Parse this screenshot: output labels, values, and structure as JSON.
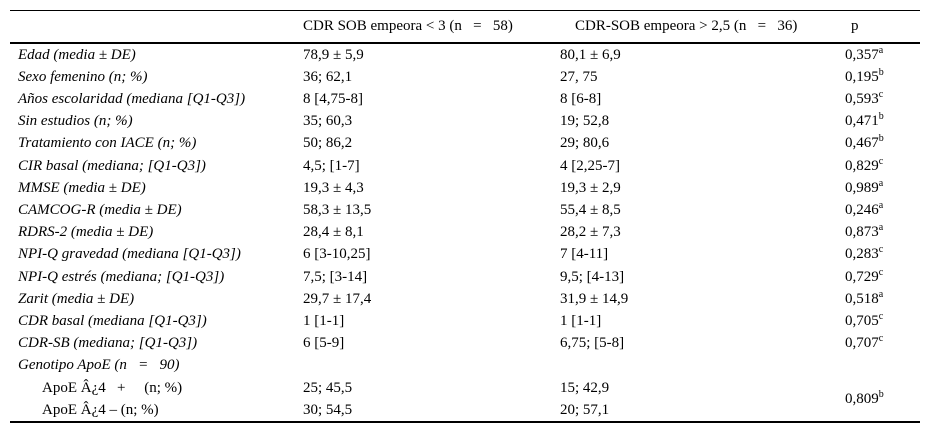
{
  "page": {
    "background": "#ffffff",
    "text_color": "#000000",
    "border_color": "#000000"
  },
  "table": {
    "header": {
      "variable": "",
      "group1": "CDR SOB empeora < 3 (n   =   58)",
      "group2": "CDR-SOB empeora > 2,5 (n   =   36)",
      "p": "p"
    },
    "rows": [
      {
        "label": "Edad (media ± DE)",
        "italic": true,
        "indent": false,
        "g1": "78,9 ± 5,9",
        "g2": "80,1 ± 6,9",
        "p": "0,357",
        "p_sup": "a"
      },
      {
        "label": "Sexo femenino (n; %)",
        "italic": true,
        "indent": false,
        "g1": "36; 62,1",
        "g2": "27, 75",
        "p": "0,195",
        "p_sup": "b"
      },
      {
        "label": "Años escolaridad (mediana [Q1-Q3])",
        "italic": true,
        "indent": false,
        "g1": "8 [4,75-8]",
        "g2": "8 [6-8]",
        "p": "0,593",
        "p_sup": "c"
      },
      {
        "label": "Sin estudios (n; %)",
        "italic": true,
        "indent": false,
        "g1": "35; 60,3",
        "g2": "19; 52,8",
        "p": "0,471",
        "p_sup": "b"
      },
      {
        "label": "Tratamiento con IACE (n; %)",
        "italic": true,
        "indent": false,
        "g1": "50; 86,2",
        "g2": "29; 80,6",
        "p": "0,467",
        "p_sup": "b"
      },
      {
        "label": "CIR basal (mediana; [Q1-Q3])",
        "italic": true,
        "indent": false,
        "g1": "4,5; [1-7]",
        "g2": "4 [2,25-7]",
        "p": "0,829",
        "p_sup": "c"
      },
      {
        "label": "MMSE (media ± DE)",
        "italic": true,
        "indent": false,
        "g1": "19,3 ± 4,3",
        "g2": "19,3 ± 2,9",
        "p": "0,989",
        "p_sup": "a"
      },
      {
        "label": "CAMCOG-R (media ± DE)",
        "italic": true,
        "indent": false,
        "g1": "58,3 ± 13,5",
        "g2": "55,4 ± 8,5",
        "p": "0,246",
        "p_sup": "a"
      },
      {
        "label": "RDRS-2 (media ± DE)",
        "italic": true,
        "indent": false,
        "g1": "28,4 ± 8,1",
        "g2": "28,2 ± 7,3",
        "p": "0,873",
        "p_sup": "a"
      },
      {
        "label": "NPI-Q gravedad (mediana [Q1-Q3])",
        "italic": true,
        "indent": false,
        "g1": "6 [3-10,25]",
        "g2": "7 [4-11]",
        "p": "0,283",
        "p_sup": "c"
      },
      {
        "label": "NPI-Q estrés (mediana; [Q1-Q3])",
        "italic": true,
        "indent": false,
        "g1": "7,5; [3-14]",
        "g2": "9,5; [4-13]",
        "p": "0,729",
        "p_sup": "c"
      },
      {
        "label": "Zarit (media ± DE)",
        "italic": true,
        "indent": false,
        "g1": "29,7 ± 17,4",
        "g2": "31,9 ± 14,9",
        "p": "0,518",
        "p_sup": "a"
      },
      {
        "label": "CDR basal (mediana [Q1-Q3])",
        "italic": true,
        "indent": false,
        "g1": "1 [1-1]",
        "g2": "1 [1-1]",
        "p": "0,705",
        "p_sup": "c"
      },
      {
        "label": "CDR-SB (mediana; [Q1-Q3])",
        "italic": true,
        "indent": false,
        "g1": "6 [5-9]",
        "g2": "6,75; [5-8]",
        "p": "0,707",
        "p_sup": "c"
      },
      {
        "label": "Genotipo ApoE (n   =   90)",
        "italic": true,
        "indent": false,
        "g1": "",
        "g2": "",
        "p": "",
        "p_sup": ""
      },
      {
        "label": "ApoE Â¿4   +     (n; %)",
        "italic": false,
        "indent": true,
        "g1": "25; 45,5",
        "g2": "15; 42,9",
        "p": "0,809",
        "p_sup": "b",
        "p_rowspan": 2
      },
      {
        "label": "ApoE Â¿4 – (n; %)",
        "italic": false,
        "indent": true,
        "g1": "30; 54,5",
        "g2": "20; 57,1",
        "p": null
      }
    ]
  }
}
